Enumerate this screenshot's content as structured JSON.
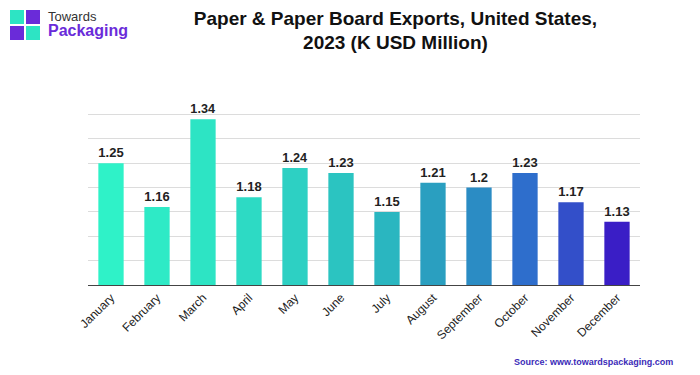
{
  "logo": {
    "lines": [
      "Towards",
      "Packaging"
    ]
  },
  "chart_data": {
    "type": "bar",
    "title": "Paper & Paper Board Exports, United States,\n2023 (K USD Million)",
    "categories": [
      "January",
      "February",
      "March",
      "April",
      "May",
      "June",
      "July",
      "August",
      "September",
      "October",
      "November",
      "December"
    ],
    "values": [
      1.25,
      1.16,
      1.34,
      1.18,
      1.24,
      1.23,
      1.15,
      1.21,
      1.2,
      1.23,
      1.17,
      1.13
    ],
    "colors": [
      "#2ff2c8",
      "#2eeac6",
      "#2de4c4",
      "#2ddac4",
      "#2dd0c3",
      "#2bc4c1",
      "#2ab6c0",
      "#2a9fc0",
      "#2b8cc4",
      "#2e6ecc",
      "#334fc9",
      "#3a1ec6"
    ],
    "ylim": [
      1,
      1.4
    ],
    "yticks": [
      1,
      1.05,
      1.1,
      1.15,
      1.2,
      1.25,
      1.3,
      1.35,
      1.4
    ],
    "grid": true,
    "data_labels": true,
    "tick_labels": "x",
    "source": "Source: www.towardspackaging.com"
  }
}
